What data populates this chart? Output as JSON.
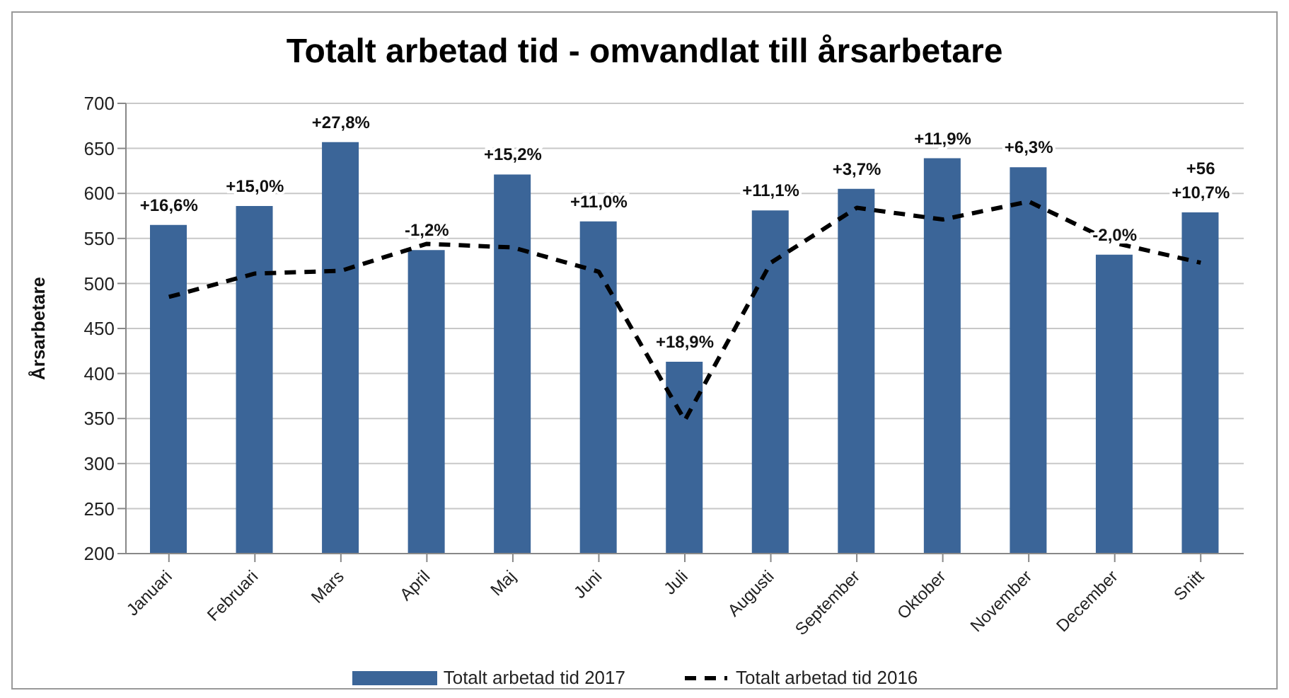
{
  "chart_data": {
    "type": "bar",
    "title": "Totalt arbetad tid - omvandlat till årsarbetare",
    "ylabel": "Årsarbetare",
    "categories": [
      "Januari",
      "Februari",
      "Mars",
      "April",
      "Maj",
      "Juni",
      "Juli",
      "Augusti",
      "September",
      "Oktober",
      "November",
      "December",
      "Snitt"
    ],
    "series": [
      {
        "name": "Totalt arbetad tid 2017",
        "color": "#3b6598",
        "values": [
          565,
          586,
          657,
          537,
          621,
          569,
          413,
          581,
          605,
          639,
          629,
          532,
          579
        ]
      },
      {
        "name": "Totalt arbetad tid 2016",
        "type": "line",
        "color": "#000000",
        "line_style": "dashed",
        "marker": "none",
        "values": [
          485,
          511,
          514,
          544,
          540,
          513,
          348,
          523,
          584,
          571,
          591,
          545,
          523
        ]
      }
    ],
    "annotations": [
      {
        "text": "+16,6%",
        "x": "Januari",
        "y": 565
      },
      {
        "text": "+15,0%",
        "x": "Februari",
        "y": 586
      },
      {
        "text": "+27,8%",
        "x": "Mars",
        "y": 657
      },
      {
        "text": "-1,2%",
        "x": "April",
        "y": 537
      },
      {
        "text": "+15,2%",
        "x": "Maj",
        "y": 621
      },
      {
        "text": "+11,0%",
        "x": "Juni",
        "y": 569
      },
      {
        "text": "+18,9%",
        "x": "Juli",
        "y": 413
      },
      {
        "text": "+11,1%",
        "x": "Augusti",
        "y": 581
      },
      {
        "text": "+3,7%",
        "x": "September",
        "y": 605
      },
      {
        "text": "+11,9%",
        "x": "Oktober",
        "y": 639
      },
      {
        "text": "+6,3%",
        "x": "November",
        "y": 629
      },
      {
        "text": "-2,0%",
        "x": "December",
        "y": 532
      },
      {
        "text": "+56",
        "x": "Snitt",
        "y": 579
      },
      {
        "text": "+10,7%",
        "x": "Snitt",
        "y": 579
      }
    ],
    "ylim": [
      200,
      700
    ],
    "yticks": [
      200,
      250,
      300,
      350,
      400,
      450,
      500,
      550,
      600,
      650,
      700
    ],
    "grid": "y",
    "legend": "bottom"
  }
}
